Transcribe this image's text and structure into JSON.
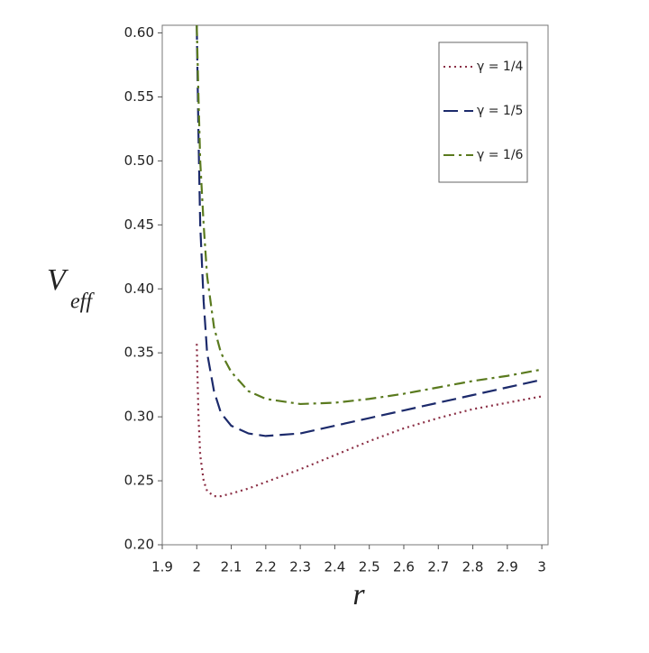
{
  "chart_data": {
    "type": "line",
    "xlabel": "r",
    "ylabel": "V",
    "ylabel_subscript": "eff",
    "xlim": [
      1.9,
      3.018
    ],
    "ylim": [
      0.2,
      0.606
    ],
    "xticks": [
      1.9,
      2,
      2.1,
      2.2,
      2.3,
      2.4,
      2.5,
      2.6,
      2.7,
      2.8,
      2.9,
      3
    ],
    "yticks": [
      {
        "value": 0.2,
        "label": "0.20"
      },
      {
        "value": 0.25,
        "label": "0.25"
      },
      {
        "value": 0.3,
        "label": "0.30"
      },
      {
        "value": 0.35,
        "label": "0.35"
      },
      {
        "value": 0.4,
        "label": "0.40"
      },
      {
        "value": 0.45,
        "label": "0.45"
      },
      {
        "value": 0.5,
        "label": "0.50"
      },
      {
        "value": 0.55,
        "label": "0.55"
      },
      {
        "value": 0.6,
        "label": "0.60"
      }
    ],
    "legend": "upper right",
    "x": [
      2.0,
      2.005,
      2.01,
      2.02,
      2.03,
      2.05,
      2.07,
      2.1,
      2.15,
      2.2,
      2.3,
      2.4,
      2.5,
      2.6,
      2.7,
      2.8,
      2.9,
      3.0
    ],
    "series": [
      {
        "name": "γ = 1/4",
        "color": "#8b2f45",
        "linestyle": "dotted",
        "values": [
          0.357,
          0.3,
          0.27,
          0.25,
          0.242,
          0.238,
          0.238,
          0.24,
          0.244,
          0.249,
          0.259,
          0.27,
          0.281,
          0.291,
          0.299,
          0.306,
          0.311,
          0.316
        ]
      },
      {
        "name": "γ = 1/5",
        "color": "#1c2a6b",
        "linestyle": "dashed",
        "values": [
          0.606,
          0.52,
          0.45,
          0.39,
          0.35,
          0.32,
          0.303,
          0.293,
          0.287,
          0.285,
          0.287,
          0.293,
          0.299,
          0.305,
          0.311,
          0.317,
          0.323,
          0.329
        ]
      },
      {
        "name": "γ = 1/6",
        "color": "#5a7a1e",
        "linestyle": "dashdot",
        "values": [
          0.606,
          0.55,
          0.5,
          0.45,
          0.41,
          0.37,
          0.35,
          0.335,
          0.32,
          0.314,
          0.31,
          0.311,
          0.314,
          0.318,
          0.323,
          0.328,
          0.332,
          0.337
        ]
      }
    ]
  }
}
